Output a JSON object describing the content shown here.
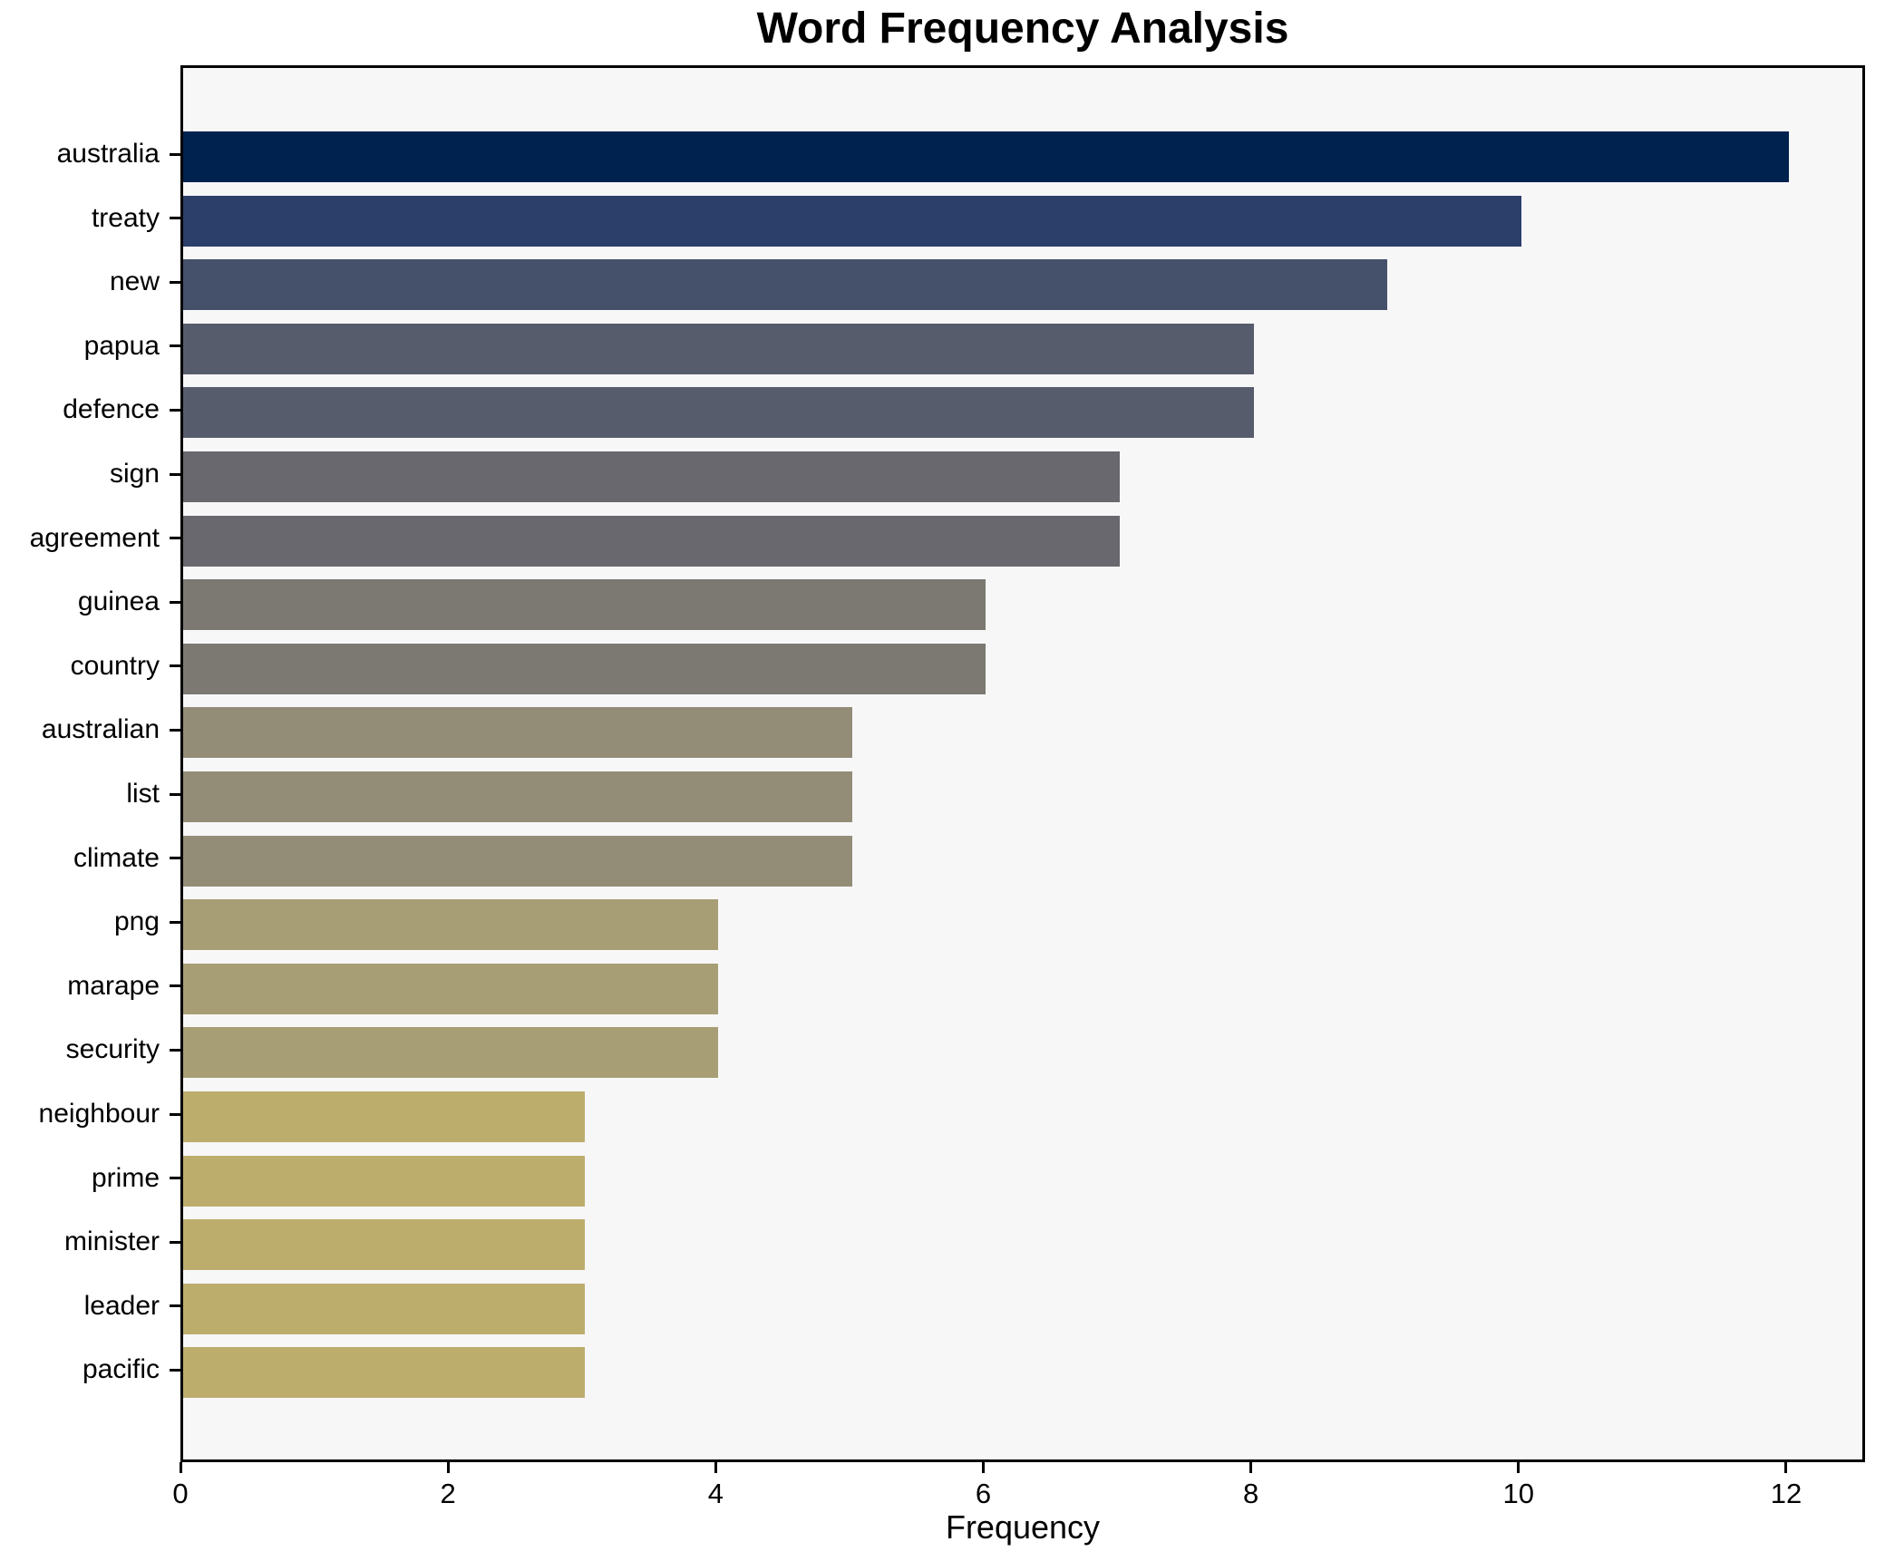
{
  "chart_data": {
    "type": "bar",
    "orientation": "horizontal",
    "title": "Word Frequency Analysis",
    "xlabel": "Frequency",
    "ylabel": "",
    "categories": [
      "australia",
      "treaty",
      "new",
      "papua",
      "defence",
      "sign",
      "agreement",
      "guinea",
      "country",
      "australian",
      "list",
      "climate",
      "png",
      "marape",
      "security",
      "neighbour",
      "prime",
      "minister",
      "leader",
      "pacific"
    ],
    "values": [
      12,
      10,
      9,
      8,
      8,
      7,
      7,
      6,
      6,
      5,
      5,
      5,
      4,
      4,
      4,
      3,
      3,
      3,
      3,
      3
    ],
    "bar_colors": [
      "#00224e",
      "#2c3e6a",
      "#45506b",
      "#575c6d",
      "#575c6d",
      "#69686e",
      "#69686e",
      "#7b7971",
      "#7b7971",
      "#938c77",
      "#938c77",
      "#938c77",
      "#a79e75",
      "#a79e75",
      "#a79e75",
      "#bcad6d",
      "#bcad6d",
      "#bcad6d",
      "#bcad6d",
      "#bcad6d"
    ],
    "x_ticks": [
      0,
      2,
      4,
      6,
      8,
      10,
      12
    ],
    "xlim": [
      0,
      12.59
    ],
    "grid": false,
    "legend": null,
    "colormap": "cividis",
    "plot_background": "#f7f7f8",
    "figure_background": "#ffffff",
    "axes_color": "#000000",
    "text_color": "#000000"
  }
}
